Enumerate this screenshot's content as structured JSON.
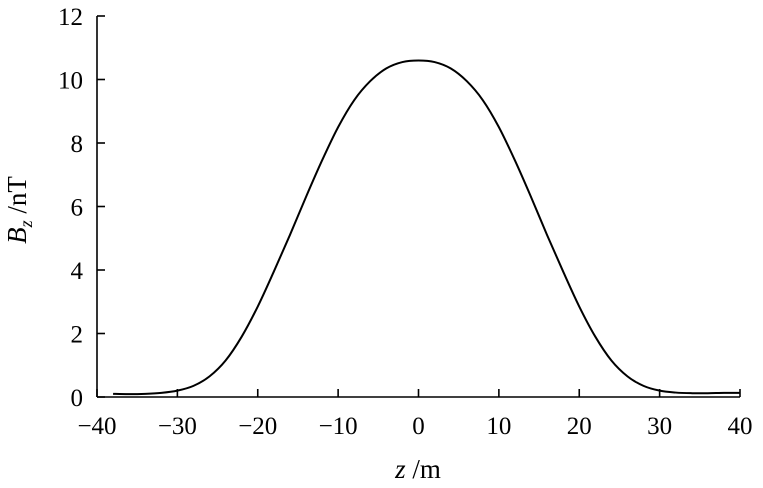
{
  "chart_data": {
    "type": "line",
    "title": "",
    "xlabel": {
      "var": "z",
      "unit": " /m"
    },
    "ylabel": {
      "var": "B",
      "sub": "z",
      "unit": " /nT"
    },
    "xlim": [
      -40,
      40
    ],
    "ylim": [
      0,
      12
    ],
    "xticks": [
      -40,
      -30,
      -20,
      -10,
      0,
      10,
      20,
      30,
      40
    ],
    "yticks": [
      0,
      2,
      4,
      6,
      8,
      10,
      12
    ],
    "xtick_labels": [
      "−40",
      "−30",
      "−20",
      "−10",
      "0",
      "10",
      "20",
      "30",
      "40"
    ],
    "ytick_labels": [
      "0",
      "2",
      "4",
      "6",
      "8",
      "10",
      "12"
    ],
    "grid": false,
    "series": [
      {
        "x": [
          -38,
          -36,
          -34,
          -32,
          -30,
          -28,
          -26,
          -24,
          -22,
          -20,
          -18,
          -16,
          -14,
          -12,
          -10,
          -8,
          -6,
          -4,
          -2,
          0,
          2,
          4,
          6,
          8,
          10,
          12,
          14,
          16,
          18,
          20,
          22,
          24,
          26,
          28,
          30,
          32,
          34,
          36,
          38,
          40
        ],
        "y": [
          0.1,
          0.09,
          0.1,
          0.13,
          0.2,
          0.35,
          0.65,
          1.15,
          1.9,
          2.85,
          3.95,
          5.1,
          6.3,
          7.45,
          8.5,
          9.35,
          9.95,
          10.35,
          10.55,
          10.6,
          10.55,
          10.35,
          9.95,
          9.35,
          8.5,
          7.45,
          6.3,
          5.1,
          3.95,
          2.85,
          1.9,
          1.15,
          0.65,
          0.35,
          0.2,
          0.14,
          0.12,
          0.12,
          0.13,
          0.13
        ]
      }
    ]
  }
}
